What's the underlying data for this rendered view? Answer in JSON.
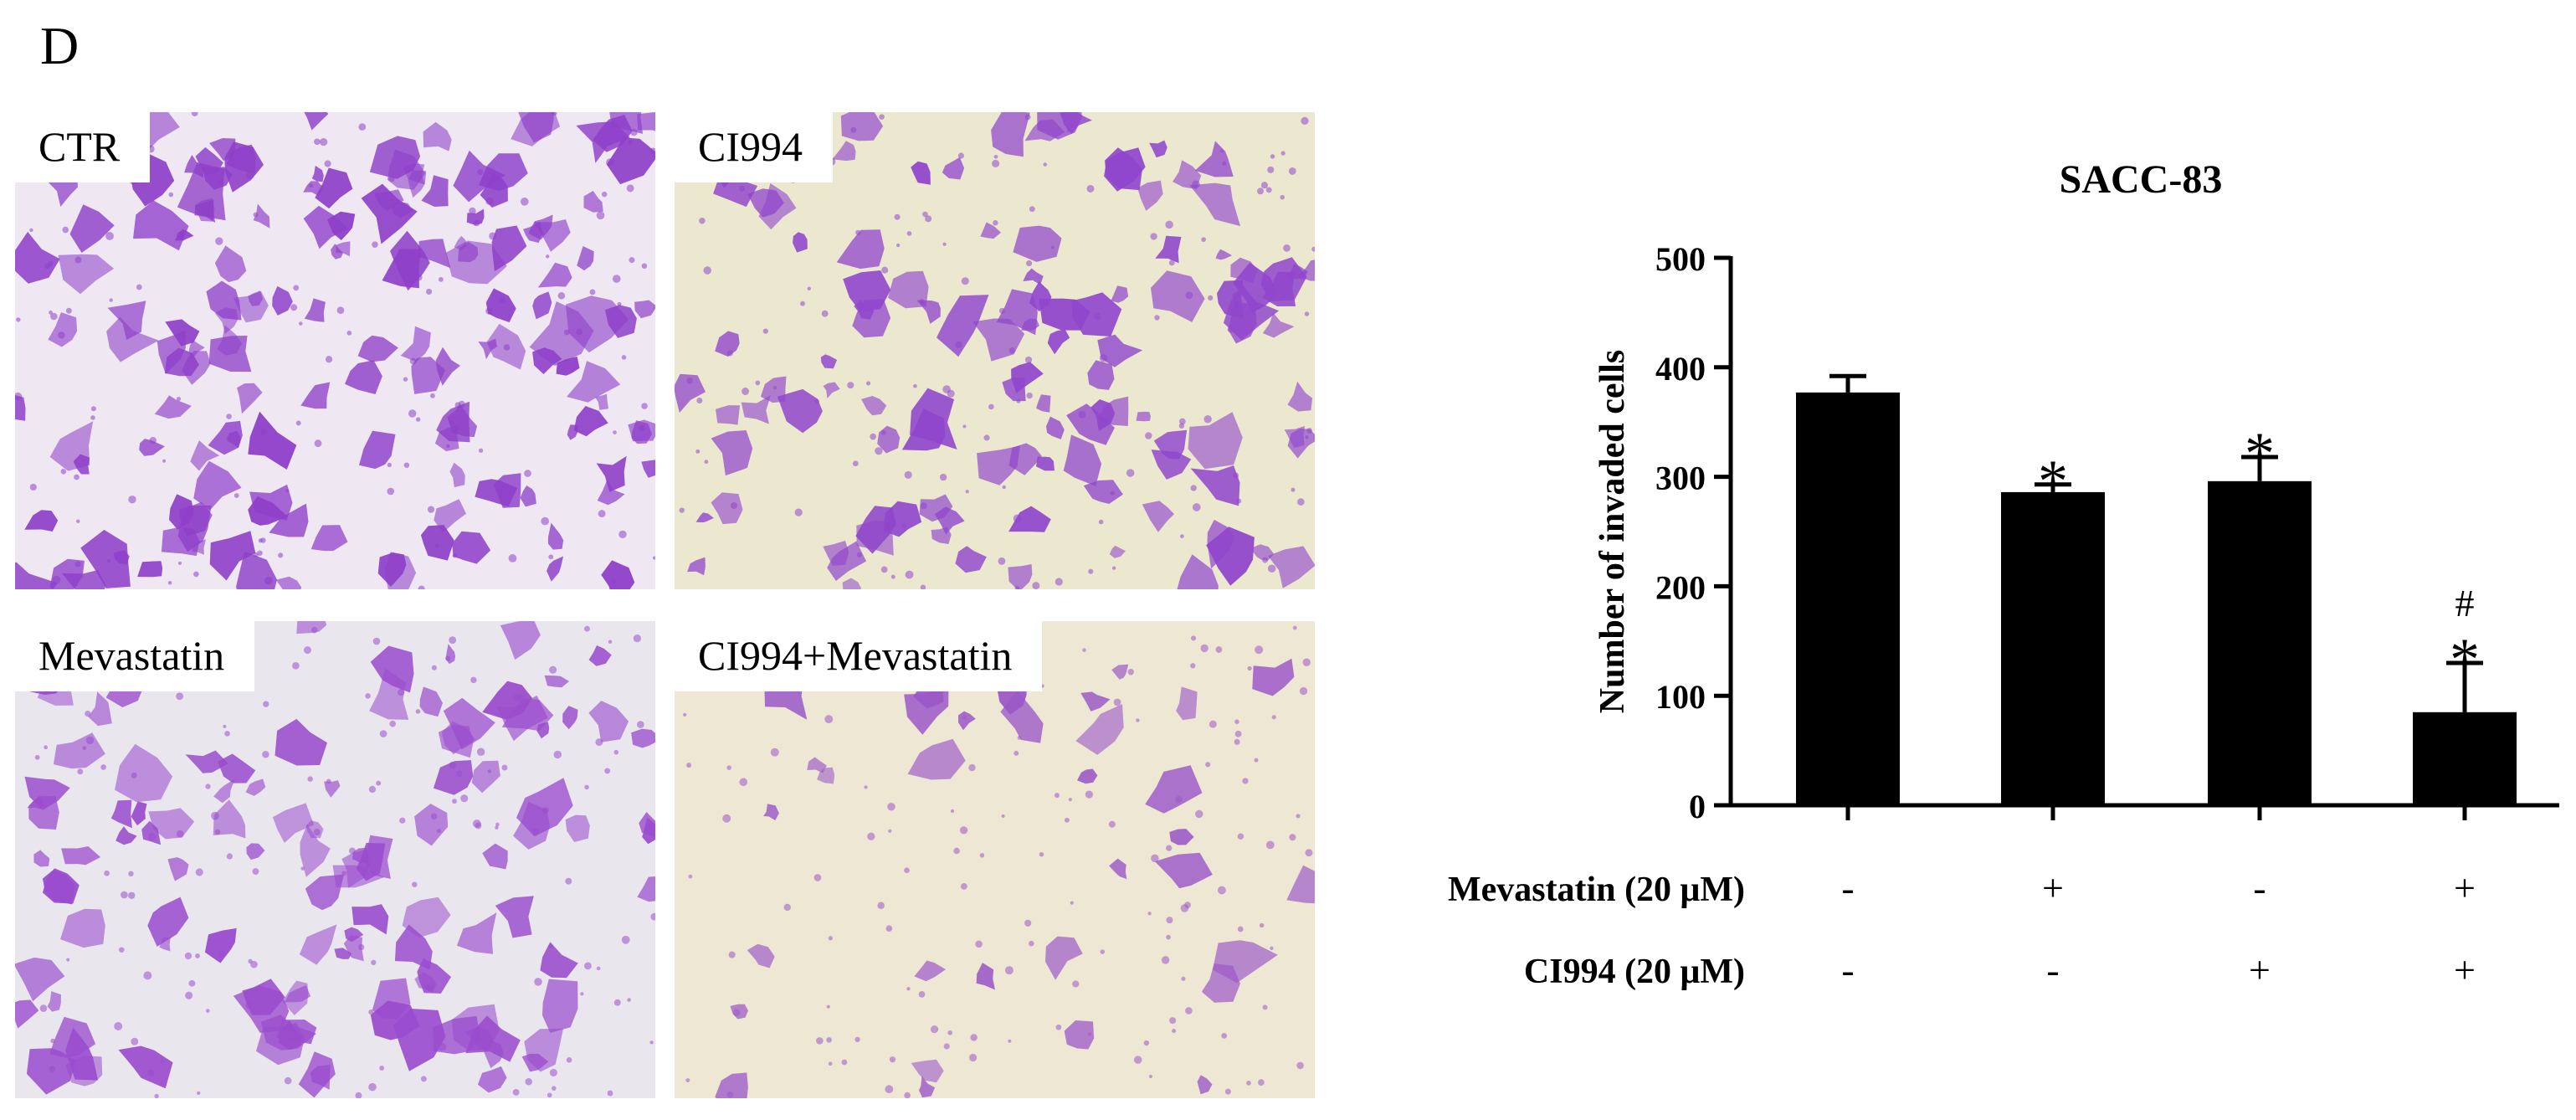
{
  "panel_letter": "D",
  "micrographs": [
    {
      "label": "CTR",
      "background": "#efe8f3",
      "stain": "#8e3fc9",
      "cell_count": 150
    },
    {
      "label": "CI994",
      "background": "#ece8cf",
      "stain": "#9046cc",
      "cell_count": 110
    },
    {
      "label": "Mevastatin",
      "background": "#eae6ee",
      "stain": "#9a4ccd",
      "cell_count": 115
    },
    {
      "label": "CI994+Mevastatin",
      "background": "#eee7d3",
      "stain": "#9b58c8",
      "cell_count": 40
    }
  ],
  "chart_data": {
    "type": "bar",
    "title": "SACC-83",
    "ylabel": "Number of invaded cells",
    "xlabel": "",
    "ylim": [
      0,
      500
    ],
    "yticks": [
      0,
      100,
      200,
      300,
      400,
      500
    ],
    "categories": [
      "",
      "",
      "",
      ""
    ],
    "values": [
      377,
      286,
      296,
      85
    ],
    "errors": [
      15,
      7,
      22,
      45
    ],
    "annotations": [
      "",
      "*",
      "*",
      "#\n*"
    ],
    "treatments": [
      {
        "label": "Mevastatin (20 μM)",
        "values": [
          "-",
          "+",
          "-",
          "+"
        ]
      },
      {
        "label": "CI994 (20 μM)",
        "values": [
          "-",
          "-",
          "+",
          "+"
        ]
      }
    ],
    "bar_color": "#000000",
    "grid": false,
    "legend": "none"
  }
}
